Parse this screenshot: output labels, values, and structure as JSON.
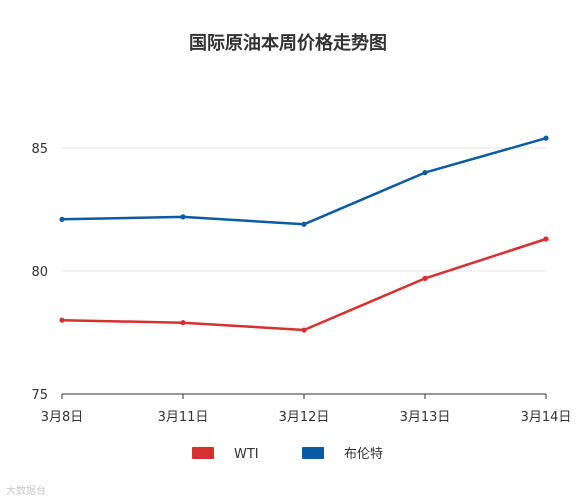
{
  "watermark": "大数据台",
  "chart_data": {
    "type": "line",
    "title": "国际原油本周价格走势图",
    "categories": [
      "3月8日",
      "3月11日",
      "3月12日",
      "3月13日",
      "3月14日"
    ],
    "series": [
      {
        "name": "WTI",
        "color": "#d63031",
        "values": [
          78.0,
          77.9,
          77.6,
          79.7,
          81.3
        ]
      },
      {
        "name": "布伦特",
        "color": "#0b5aa5",
        "values": [
          82.1,
          82.2,
          81.9,
          84.0,
          85.4
        ]
      }
    ],
    "ylim": [
      75,
      85
    ],
    "yticks": [
      75,
      80,
      85
    ],
    "grid": true,
    "legend": "bottom"
  }
}
